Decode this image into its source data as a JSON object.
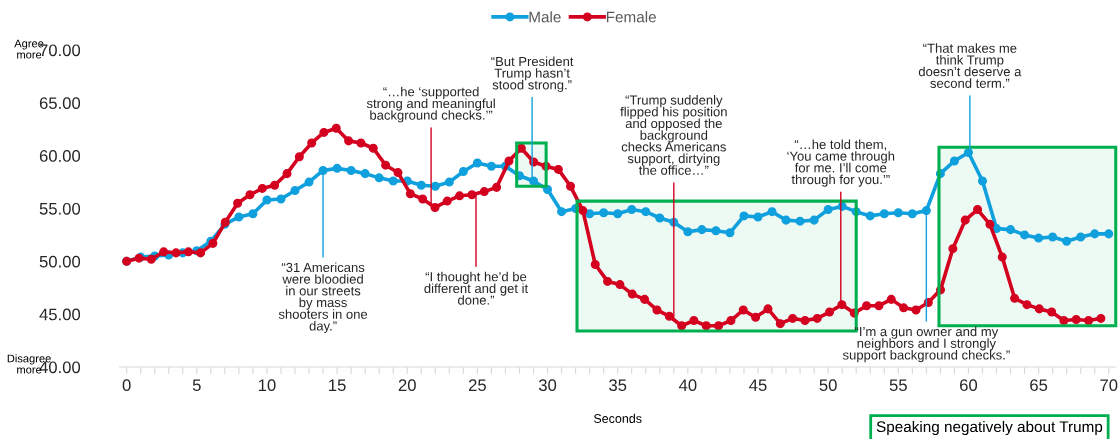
{
  "chart_data": {
    "type": "line",
    "xlabel": "Seconds",
    "xlim": [
      -0.5,
      70.5
    ],
    "ylim": [
      40,
      70
    ],
    "xticks": [
      0,
      {
        "value": 1,
        "label": null
      },
      {
        "value": 2,
        "label": null
      },
      {
        "value": 3,
        "label": null
      },
      {
        "value": 4,
        "label": null
      },
      5,
      {
        "value": 6,
        "label": null
      },
      {
        "value": 7,
        "label": null
      },
      {
        "value": 8,
        "label": null
      },
      {
        "value": 9,
        "label": null
      },
      10,
      {
        "value": 11,
        "label": null
      },
      {
        "value": 12,
        "label": null
      },
      {
        "value": 13,
        "label": null
      },
      {
        "value": 14,
        "label": null
      },
      15,
      {
        "value": 16,
        "label": null
      },
      {
        "value": 17,
        "label": null
      },
      {
        "value": 18,
        "label": null
      },
      {
        "value": 19,
        "label": null
      },
      20,
      {
        "value": 21,
        "label": null
      },
      {
        "value": 22,
        "label": null
      },
      {
        "value": 23,
        "label": null
      },
      {
        "value": 24,
        "label": null
      },
      25,
      {
        "value": 26,
        "label": null
      },
      {
        "value": 27,
        "label": null
      },
      {
        "value": 28,
        "label": null
      },
      {
        "value": 29,
        "label": null
      },
      30,
      {
        "value": 31,
        "label": null
      },
      {
        "value": 32,
        "label": null
      },
      {
        "value": 33,
        "label": null
      },
      {
        "value": 34,
        "label": null
      },
      35,
      {
        "value": 36,
        "label": null
      },
      {
        "value": 37,
        "label": null
      },
      {
        "value": 38,
        "label": null
      },
      {
        "value": 39,
        "label": null
      },
      40,
      {
        "value": 41,
        "label": null
      },
      {
        "value": 42,
        "label": null
      },
      {
        "value": 43,
        "label": null
      },
      {
        "value": 44,
        "label": null
      },
      45,
      {
        "value": 46,
        "label": null
      },
      {
        "value": 47,
        "label": null
      },
      {
        "value": 48,
        "label": null
      },
      {
        "value": 49,
        "label": null
      },
      50,
      {
        "value": 51,
        "label": null
      },
      {
        "value": 52,
        "label": null
      },
      {
        "value": 53,
        "label": null
      },
      {
        "value": 54,
        "label": null
      },
      55,
      {
        "value": 56,
        "label": null
      },
      {
        "value": 57,
        "label": null
      },
      {
        "value": 58,
        "label": null
      },
      {
        "value": 59,
        "label": null
      },
      60,
      {
        "value": 61,
        "label": null
      },
      {
        "value": 62,
        "label": null
      },
      {
        "value": 63,
        "label": null
      },
      {
        "value": 64,
        "label": null
      },
      65,
      {
        "value": 66,
        "label": null
      },
      {
        "value": 67,
        "label": null
      },
      {
        "value": 68,
        "label": null
      },
      {
        "value": 69,
        "label": null
      },
      70
    ],
    "yticks": [
      {
        "value": 40,
        "label": "40.00"
      },
      {
        "value": 45,
        "label": "45.00"
      },
      {
        "value": 50,
        "label": "50.00"
      },
      {
        "value": 55,
        "label": "55.00"
      },
      {
        "value": 60,
        "label": "60.00"
      },
      {
        "value": 65,
        "label": "65.00"
      },
      {
        "value": 70,
        "label": "70.00"
      }
    ],
    "grid": false,
    "legend": "top",
    "marker": "circle",
    "line_style": "solid",
    "series": [
      {
        "name": "Male",
        "color": "#0fa0dd",
        "x": [
          0,
          1,
          2,
          3,
          4,
          5,
          6,
          7,
          8,
          9,
          10,
          11,
          12,
          13,
          14,
          15,
          16,
          17,
          18,
          19,
          20,
          21,
          22,
          23,
          24,
          25,
          26,
          27,
          28,
          29,
          30,
          31,
          32,
          33,
          34,
          35,
          36,
          37,
          38,
          39,
          40,
          41,
          42,
          43,
          44,
          45,
          46,
          47,
          48,
          49,
          50,
          51,
          52,
          53,
          54,
          55,
          56,
          57,
          58,
          59,
          60,
          61,
          62,
          63,
          64,
          65,
          66,
          67,
          68,
          69,
          70
        ],
        "values": [
          50.0,
          50.4,
          50.5,
          50.6,
          50.8,
          51.0,
          51.9,
          53.5,
          54.2,
          54.5,
          55.8,
          55.9,
          56.7,
          57.5,
          58.6,
          58.8,
          58.6,
          58.3,
          57.9,
          57.6,
          57.6,
          57.2,
          57.1,
          57.5,
          58.5,
          59.3,
          59.0,
          59.0,
          58.1,
          57.6,
          56.8,
          54.7,
          55.0,
          54.5,
          54.6,
          54.5,
          54.9,
          54.7,
          54.1,
          53.7,
          52.8,
          53.0,
          52.9,
          52.7,
          54.3,
          54.2,
          54.7,
          53.9,
          53.8,
          53.9,
          54.9,
          55.2,
          54.7,
          54.3,
          54.5,
          54.6,
          54.5,
          54.8,
          58.3,
          59.5,
          60.3,
          57.6,
          53.1,
          53.0,
          52.5,
          52.2,
          52.3,
          51.9,
          52.3,
          52.6,
          52.6
        ]
      },
      {
        "name": "Female",
        "color": "#d3001f",
        "x": [
          0,
          0.88,
          1.76,
          2.64,
          3.52,
          4.4,
          5.27,
          6.15,
          7.03,
          7.91,
          8.79,
          9.67,
          10.55,
          11.43,
          12.31,
          13.19,
          14.06,
          14.94,
          15.82,
          16.7,
          17.58,
          18.46,
          19.34,
          20.22,
          21.1,
          21.98,
          22.85,
          23.73,
          24.61,
          25.49,
          26.37,
          27.25,
          28.13,
          29.01,
          29.89,
          30.77,
          31.64,
          32.52,
          33.4,
          34.28,
          35.16,
          36.04,
          36.92,
          37.8,
          38.68,
          39.56,
          40.43,
          41.31,
          42.19,
          43.07,
          43.95,
          44.83,
          45.71,
          46.59,
          47.47,
          48.35,
          49.22,
          50.1,
          50.98,
          51.86,
          52.74,
          53.62,
          54.5,
          55.38,
          56.26,
          57.14,
          58.01,
          58.89,
          59.77,
          60.65,
          61.53,
          62.41,
          63.29,
          64.17,
          65.05,
          65.93,
          66.8,
          67.68,
          68.56,
          69.44
        ],
        "values": [
          50.0,
          50.3,
          50.2,
          50.9,
          50.8,
          50.9,
          50.8,
          51.7,
          53.7,
          55.5,
          56.3,
          56.9,
          57.2,
          58.3,
          59.9,
          61.2,
          62.2,
          62.6,
          61.4,
          61.2,
          60.7,
          59.1,
          58.4,
          56.4,
          55.9,
          55.1,
          55.7,
          56.2,
          56.3,
          56.6,
          57.0,
          59.5,
          60.7,
          59.4,
          59.0,
          58.7,
          57.1,
          54.8,
          49.7,
          48.1,
          47.8,
          46.9,
          46.4,
          45.4,
          44.8,
          43.9,
          44.4,
          43.9,
          43.9,
          44.4,
          45.4,
          44.7,
          45.5,
          44.1,
          44.6,
          44.4,
          44.6,
          45.2,
          45.9,
          45.1,
          45.8,
          45.8,
          46.4,
          45.6,
          45.4,
          46.1,
          47.3,
          51.2,
          53.9,
          54.9,
          53.5,
          50.4,
          46.5,
          45.9,
          45.5,
          45.2,
          44.4,
          44.5,
          44.4,
          44.6
        ]
      }
    ],
    "bands": [
      {
        "axis": "x",
        "from": 27.8,
        "to": 29.9,
        "color": "#00b050"
      },
      {
        "axis": "x",
        "from": 32.1,
        "to": 52.0,
        "color": "#00b050"
      },
      {
        "axis": "x",
        "from": 57.9,
        "to": 70.5,
        "color": "#00b050"
      }
    ],
    "annotations": [
      {
        "text": "“…he ‘supported\nstrong and meaningful\nbackground checks.’”",
        "x": 21.7,
        "y": 55.3
      },
      {
        "text": "“31 Americans\nwere bloodied\nin our streets\nby mass\nshooters in one\nday.”",
        "x": 14,
        "y": 58.6
      },
      {
        "text": "“I thought he’d be\ndifferent and get it\ndone.”",
        "x": 24.9,
        "y": 56.3
      },
      {
        "text": "“But President\nTrump hasn’t\nstood strong.”",
        "x": 28.9,
        "y": 57.6
      },
      {
        "text": "“Trump suddenly\nflipped his position\nand opposed the\nbackground\nchecks Americans\nsupport, dirtying\nthe office…”",
        "x": 39.0,
        "y": 44.5
      },
      {
        "text": "“…he told them,\n‘You came through\nfor me. I’ll come\nthrough for you.’”",
        "x": 50.9,
        "y": 45.8
      },
      {
        "text": "“I’m a gun owner and my\nneighbors and I strongly\nsupport background checks.”",
        "x": 57.0,
        "y": 54.8
      },
      {
        "text": "“That makes me\nthink Trump\ndoesn’t deserve a\nsecond term.”",
        "x": 60.1,
        "y": 60.3
      },
      "Agree\nmore",
      "Disagree\nmore",
      "Speaking negatively about Trump"
    ]
  }
}
